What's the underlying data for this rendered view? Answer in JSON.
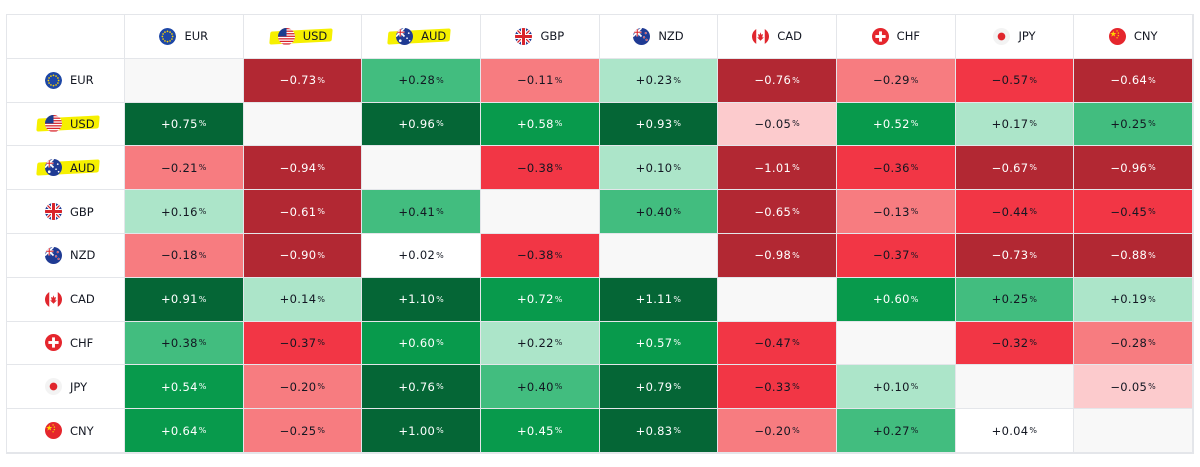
{
  "chart_data": {
    "type": "heatmap",
    "title": "",
    "currencies": [
      {
        "code": "EUR",
        "highlight": false,
        "icon": "eu-flag-icon"
      },
      {
        "code": "USD",
        "highlight": true,
        "icon": "us-flag-icon"
      },
      {
        "code": "AUD",
        "highlight": true,
        "icon": "au-flag-icon"
      },
      {
        "code": "GBP",
        "highlight": false,
        "icon": "uk-flag-icon"
      },
      {
        "code": "NZD",
        "highlight": false,
        "icon": "nz-flag-icon"
      },
      {
        "code": "CAD",
        "highlight": false,
        "icon": "ca-flag-icon"
      },
      {
        "code": "CHF",
        "highlight": false,
        "icon": "ch-flag-icon"
      },
      {
        "code": "JPY",
        "highlight": false,
        "icon": "jp-flag-icon"
      },
      {
        "code": "CNY",
        "highlight": false,
        "icon": "cn-flag-icon"
      }
    ],
    "unit": "%",
    "values": [
      [
        null,
        "-0.73",
        "+0.28",
        "-0.11",
        "+0.23",
        "-0.76",
        "-0.29",
        "-0.57",
        "-0.64"
      ],
      [
        "+0.75",
        null,
        "+0.96",
        "+0.58",
        "+0.93",
        "-0.05",
        "+0.52",
        "+0.17",
        "+0.25"
      ],
      [
        "-0.21",
        "-0.94",
        null,
        "-0.38",
        "+0.10",
        "-1.01",
        "-0.36",
        "-0.67",
        "-0.96"
      ],
      [
        "+0.16",
        "-0.61",
        "+0.41",
        null,
        "+0.40",
        "-0.65",
        "-0.13",
        "-0.44",
        "-0.45"
      ],
      [
        "-0.18",
        "-0.90",
        "+0.02",
        "-0.38",
        null,
        "-0.98",
        "-0.37",
        "-0.73",
        "-0.88"
      ],
      [
        "+0.91",
        "+0.14",
        "+1.10",
        "+0.72",
        "+1.11",
        null,
        "+0.60",
        "+0.25",
        "+0.19"
      ],
      [
        "+0.38",
        "-0.37",
        "+0.60",
        "+0.22",
        "+0.57",
        "-0.47",
        null,
        "-0.32",
        "-0.28"
      ],
      [
        "+0.54",
        "-0.20",
        "+0.76",
        "+0.40",
        "+0.79",
        "-0.33",
        "+0.10",
        null,
        "-0.05"
      ],
      [
        "+0.64",
        "-0.25",
        "+1.00",
        "+0.45",
        "+0.83",
        "-0.20",
        "+0.27",
        "+0.04",
        null
      ]
    ],
    "colors": {
      "pos_strong": "#056636",
      "pos_mid": "#089a4c",
      "pos_light": "#42bd7f",
      "pos_pale": "#ace5c9",
      "neutral": "#ffffff",
      "diagonal": "#f8f8f8",
      "neg_pale": "#fccbcd",
      "neg_light": "#f77c80",
      "neg_mid": "#f23645",
      "neg_strong": "#b22833",
      "text_dark": "#131722",
      "text_light": "#ffffff"
    }
  }
}
